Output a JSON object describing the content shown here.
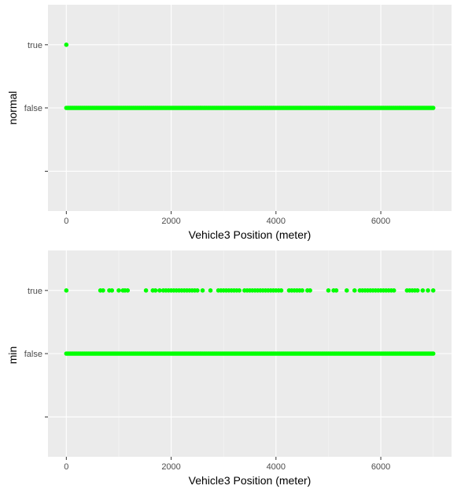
{
  "chart_data": [
    {
      "type": "scatter",
      "xlabel": "Vehicle3 Position (meter)",
      "ylabel": "normal",
      "x_ticks": [
        "0",
        "2000",
        "4000",
        "6000"
      ],
      "y_categories": [
        "",
        "false",
        "true"
      ],
      "xlim": [
        -350,
        7350
      ],
      "grid": true,
      "point_color": "#00ff00",
      "series": [
        {
          "category": "true",
          "x": [
            0
          ]
        },
        {
          "category": "false",
          "x_range": [
            0,
            7000
          ],
          "continuous": true
        }
      ]
    },
    {
      "type": "scatter",
      "xlabel": "Vehicle3 Position (meter)",
      "ylabel": "min",
      "x_ticks": [
        "0",
        "2000",
        "4000",
        "6000"
      ],
      "y_categories": [
        "",
        "false",
        "true"
      ],
      "xlim": [
        -350,
        7350
      ],
      "grid": true,
      "point_color": "#00ff00",
      "series": [
        {
          "category": "true",
          "x": [
            0,
            650,
            700,
            820,
            870,
            1000,
            1080,
            1120,
            1170,
            1520,
            1650,
            1700,
            1780,
            1850,
            1900,
            1950,
            2000,
            2050,
            2100,
            2150,
            2200,
            2250,
            2300,
            2350,
            2400,
            2450,
            2500,
            2600,
            2750,
            2900,
            2950,
            3000,
            3050,
            3100,
            3150,
            3200,
            3250,
            3300,
            3400,
            3450,
            3500,
            3550,
            3600,
            3650,
            3700,
            3750,
            3800,
            3850,
            3900,
            3950,
            4000,
            4050,
            4100,
            4250,
            4300,
            4350,
            4400,
            4450,
            4500,
            4600,
            4650,
            5000,
            5100,
            5150,
            5350,
            5500,
            5600,
            5650,
            5700,
            5750,
            5800,
            5850,
            5900,
            5950,
            6000,
            6050,
            6100,
            6150,
            6200,
            6250,
            6500,
            6550,
            6600,
            6650,
            6700,
            6800,
            6900,
            7000
          ]
        },
        {
          "category": "false",
          "x_range": [
            0,
            7000
          ],
          "continuous": true
        }
      ]
    }
  ]
}
